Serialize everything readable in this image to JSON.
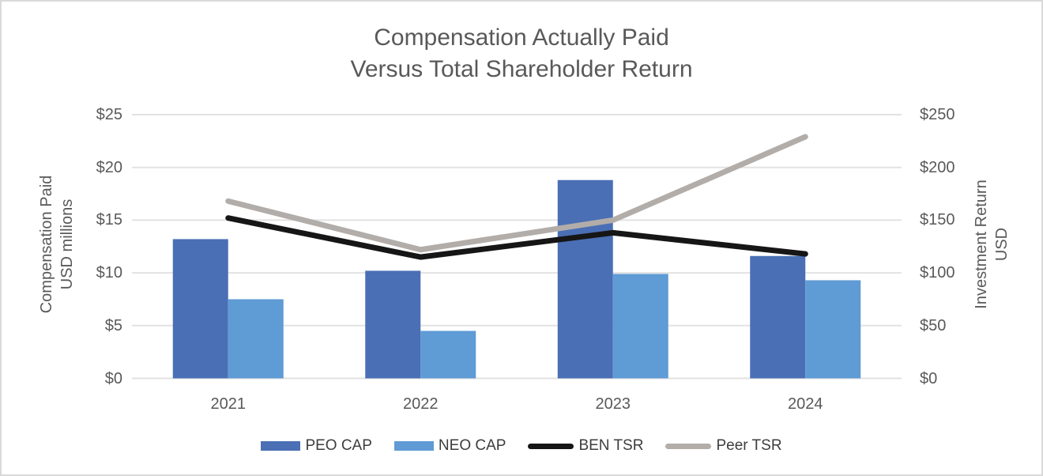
{
  "frame": {
    "border_color": "#D9D9D9",
    "background": "#FFFFFF"
  },
  "colors": {
    "gridline": "#E2E2E2",
    "axis_text": "#595959",
    "title_text": "#595959",
    "legend_text": "#3D3D3D"
  },
  "chart_data": {
    "type": "combo-bar-line",
    "title_lines": [
      "Compensation Actually Paid",
      "Versus Total Shareholder Return"
    ],
    "categories": [
      "2021",
      "2022",
      "2023",
      "2024"
    ],
    "bar_series": [
      {
        "name": "PEO CAP",
        "axis": "left",
        "color": "#4A6FB5",
        "values": [
          13.2,
          10.2,
          18.8,
          11.6
        ]
      },
      {
        "name": "NEO CAP",
        "axis": "left",
        "color": "#5F9BD5",
        "values": [
          7.5,
          4.5,
          9.9,
          9.3
        ]
      }
    ],
    "line_series": [
      {
        "name": "BEN TSR",
        "axis": "right",
        "color": "#161616",
        "values": [
          152,
          115,
          138,
          118
        ]
      },
      {
        "name": "Peer TSR",
        "axis": "right",
        "color": "#B2ADA9",
        "values": [
          168,
          122,
          150,
          229
        ]
      }
    ],
    "left_axis": {
      "title_lines": [
        "Compensation Paid",
        "USD millions"
      ],
      "ticks": [
        "$0",
        "$5",
        "$10",
        "$15",
        "$20",
        "$25"
      ],
      "min": 0,
      "max": 25
    },
    "right_axis": {
      "title_lines": [
        "Investment Return",
        "USD"
      ],
      "ticks": [
        "$0",
        "$50",
        "$100",
        "$150",
        "$200",
        "$250"
      ],
      "min": 0,
      "max": 250
    },
    "grid": true,
    "legend_position": "bottom",
    "legend": {
      "items": [
        {
          "label": "PEO CAP",
          "swatch": "rect",
          "color": "#4A6FB5"
        },
        {
          "label": "NEO CAP",
          "swatch": "rect",
          "color": "#5F9BD5"
        },
        {
          "label": "BEN TSR",
          "swatch": "line",
          "color": "#161616"
        },
        {
          "label": "Peer TSR",
          "swatch": "line",
          "color": "#B2ADA9"
        }
      ]
    }
  }
}
